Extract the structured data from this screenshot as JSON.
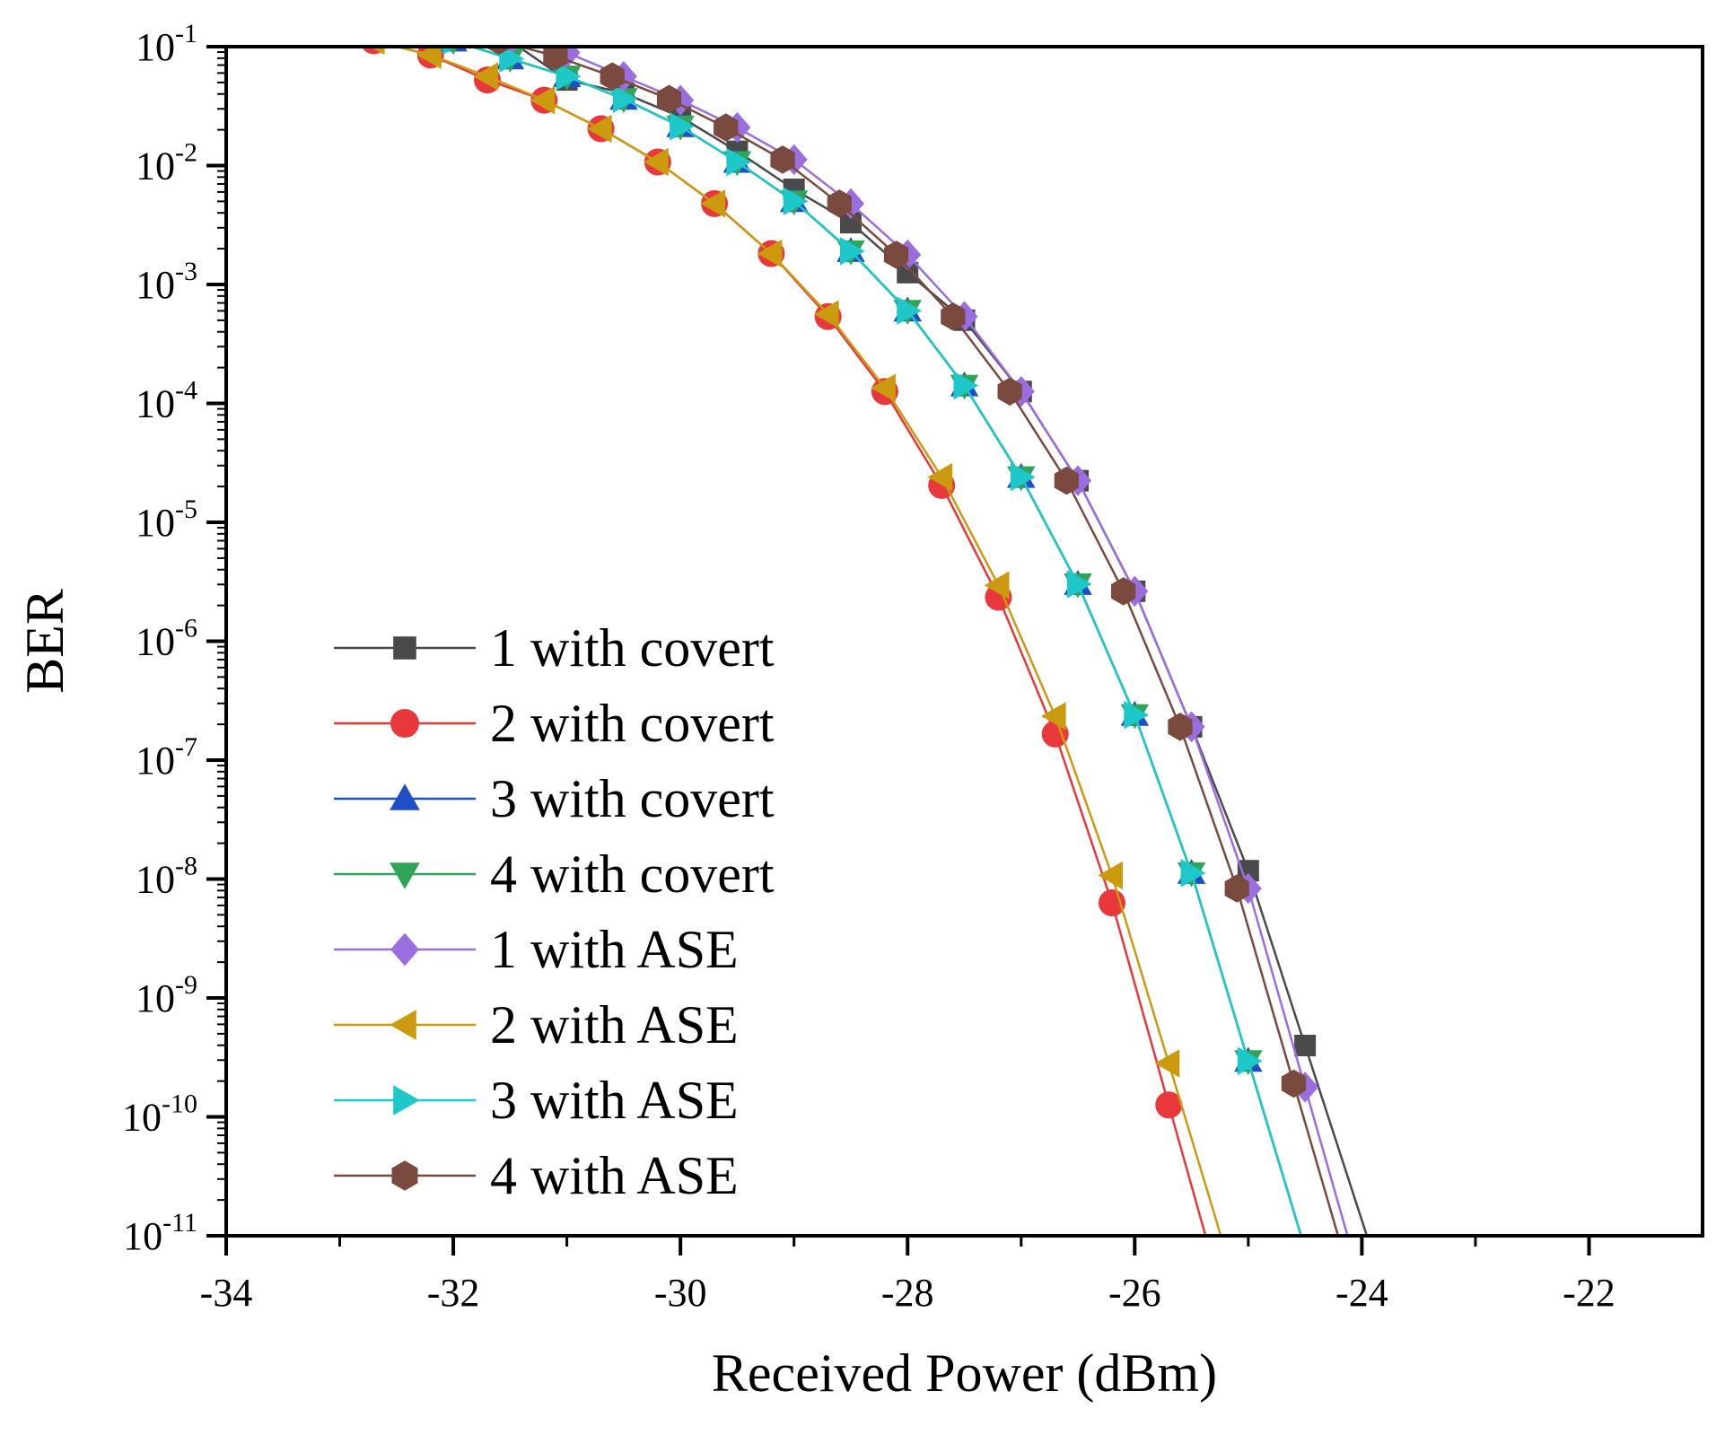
{
  "chart_data": {
    "type": "line",
    "title": "",
    "xlabel": "Received Power (dBm)",
    "ylabel": "BER",
    "xlim": [
      -34,
      -21
    ],
    "ylim_log10": [
      -11,
      -1
    ],
    "y_scale": "log",
    "x_ticks": [
      -34,
      -32,
      -30,
      -28,
      -26,
      -24,
      -22
    ],
    "x_tick_labels": [
      "-34",
      "-32",
      "-30",
      "-28",
      "-26",
      "-24",
      "-22"
    ],
    "y_ticks": [
      {
        "base": "10",
        "exp": "-1"
      },
      {
        "base": "10",
        "exp": "-2"
      },
      {
        "base": "10",
        "exp": "-3"
      },
      {
        "base": "10",
        "exp": "-4"
      },
      {
        "base": "10",
        "exp": "-5"
      },
      {
        "base": "10",
        "exp": "-6"
      },
      {
        "base": "10",
        "exp": "-7"
      },
      {
        "base": "10",
        "exp": "-8"
      },
      {
        "base": "10",
        "exp": "-9"
      },
      {
        "base": "10",
        "exp": "-10"
      },
      {
        "base": "10",
        "exp": "-11"
      }
    ],
    "grid": false,
    "legend_position": "bottom-left",
    "series": [
      {
        "name": "1 with covert",
        "color": "#4a4a4a",
        "marker": "square",
        "x": [
          -31.5,
          -31.0,
          -30.5,
          -30.0,
          -29.5,
          -29.0,
          -28.5,
          -28.0,
          -27.5,
          -27.0,
          -26.5,
          -26.0,
          -25.5,
          -25.0,
          -24.5
        ],
        "log10_ber": [
          -0.95,
          -1.28,
          -1.39,
          -1.59,
          -1.88,
          -2.2,
          -2.48,
          -2.9,
          -3.3,
          -3.9,
          -4.65,
          -5.58,
          -6.72,
          -7.93,
          -9.4
        ]
      },
      {
        "name": "2 with covert",
        "color": "#e8383b",
        "marker": "circle",
        "x": [
          -32.7,
          -32.2,
          -31.7,
          -31.2,
          -30.7,
          -30.2,
          -29.7,
          -29.2,
          -28.7,
          -28.2,
          -27.7,
          -27.2,
          -26.7,
          -26.2,
          -25.7
        ],
        "log10_ber": [
          -0.95,
          -1.07,
          -1.28,
          -1.45,
          -1.69,
          -1.97,
          -2.32,
          -2.74,
          -3.27,
          -3.9,
          -4.69,
          -5.63,
          -6.78,
          -8.2,
          -9.9
        ]
      },
      {
        "name": "3 with covert",
        "color": "#1e4fc8",
        "marker": "triangle-up",
        "x": [
          -32.0,
          -31.5,
          -31.0,
          -30.5,
          -30.0,
          -29.5,
          -29.0,
          -28.5,
          -28.0,
          -27.5,
          -27.0,
          -26.5,
          -26.0,
          -25.5,
          -25.0
        ],
        "log10_ber": [
          -0.95,
          -1.1,
          -1.25,
          -1.44,
          -1.67,
          -1.97,
          -2.3,
          -2.72,
          -3.22,
          -3.85,
          -4.62,
          -5.52,
          -6.62,
          -7.95,
          -9.53
        ]
      },
      {
        "name": "4 with covert",
        "color": "#2fa55a",
        "marker": "triangle-down",
        "x": [
          -32.0,
          -31.5,
          -31.0,
          -30.5,
          -30.0,
          -29.5,
          -29.0,
          -28.5,
          -28.0,
          -27.5,
          -27.0,
          -26.5,
          -26.0,
          -25.5,
          -25.0
        ],
        "log10_ber": [
          -0.95,
          -1.1,
          -1.25,
          -1.44,
          -1.67,
          -1.97,
          -2.3,
          -2.72,
          -3.22,
          -3.85,
          -4.62,
          -5.52,
          -6.62,
          -7.95,
          -9.53
        ]
      },
      {
        "name": "1 with ASE",
        "color": "#9b6ee0",
        "marker": "diamond",
        "x": [
          -31.5,
          -31.0,
          -30.5,
          -30.0,
          -29.5,
          -29.0,
          -28.5,
          -28.0,
          -27.5,
          -27.0,
          -26.5,
          -26.0,
          -25.5,
          -25.0,
          -24.5
        ],
        "log10_ber": [
          -0.95,
          -1.05,
          -1.25,
          -1.45,
          -1.68,
          -1.95,
          -2.32,
          -2.75,
          -3.27,
          -3.9,
          -4.65,
          -5.58,
          -6.72,
          -8.08,
          -9.75
        ]
      },
      {
        "name": "2 with ASE",
        "color": "#cc9a0f",
        "marker": "triangle-left",
        "x": [
          -32.7,
          -32.2,
          -31.7,
          -31.2,
          -30.7,
          -30.2,
          -29.7,
          -29.2,
          -28.7,
          -28.2,
          -27.7,
          -27.2,
          -26.7,
          -26.2,
          -25.7
        ],
        "log10_ber": [
          -0.95,
          -1.07,
          -1.25,
          -1.45,
          -1.69,
          -1.97,
          -2.32,
          -2.74,
          -3.25,
          -3.87,
          -4.62,
          -5.53,
          -6.63,
          -7.97,
          -9.55
        ]
      },
      {
        "name": "3 with ASE",
        "color": "#1ec8c8",
        "marker": "triangle-right",
        "x": [
          -32.0,
          -31.5,
          -31.0,
          -30.5,
          -30.0,
          -29.5,
          -29.0,
          -28.5,
          -28.0,
          -27.5,
          -27.0,
          -26.5,
          -26.0,
          -25.5,
          -25.0
        ],
        "log10_ber": [
          -0.95,
          -1.1,
          -1.25,
          -1.44,
          -1.67,
          -1.97,
          -2.3,
          -2.72,
          -3.22,
          -3.85,
          -4.62,
          -5.52,
          -6.62,
          -7.95,
          -9.53
        ]
      },
      {
        "name": "4 with ASE",
        "color": "#7a4a3e",
        "marker": "hexagon",
        "x": [
          -31.6,
          -31.1,
          -30.6,
          -30.1,
          -29.6,
          -29.1,
          -28.6,
          -28.1,
          -27.6,
          -27.1,
          -26.6,
          -26.1,
          -25.6,
          -25.1,
          -24.6
        ],
        "log10_ber": [
          -0.95,
          -1.08,
          -1.25,
          -1.44,
          -1.68,
          -1.95,
          -2.32,
          -2.75,
          -3.27,
          -3.9,
          -4.65,
          -5.58,
          -6.72,
          -8.08,
          -9.72
        ]
      }
    ]
  }
}
